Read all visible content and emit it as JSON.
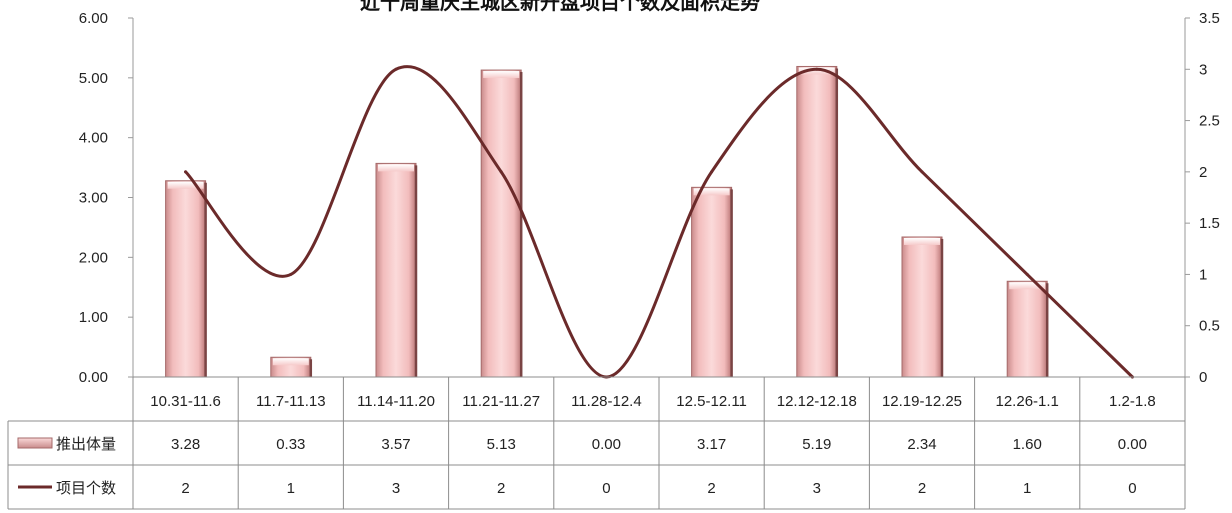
{
  "chart_data": {
    "type": "bar",
    "title": "近十周重庆主城区新开盘项目个数及面积走势",
    "categories": [
      "10.31-11.6",
      "11.7-11.13",
      "11.14-11.20",
      "11.21-11.27",
      "11.28-12.4",
      "12.5-12.11",
      "12.12-12.18",
      "12.19-12.25",
      "12.26-1.1",
      "1.2-1.8"
    ],
    "series": [
      {
        "name": "推出体量",
        "type": "bar",
        "axis": "left",
        "values": [
          3.28,
          0.33,
          3.57,
          5.13,
          0.0,
          3.17,
          5.19,
          2.34,
          1.6,
          0.0
        ],
        "labels": [
          "3.28",
          "0.33",
          "3.57",
          "5.13",
          "0.00",
          "3.17",
          "5.19",
          "2.34",
          "1.60",
          "0.00"
        ],
        "color": "#f4c0c0"
      },
      {
        "name": "项目个数",
        "type": "line",
        "axis": "right",
        "smooth": true,
        "values": [
          2,
          1,
          3,
          2,
          0,
          2,
          3,
          2,
          1,
          0
        ],
        "labels": [
          "2",
          "1",
          "3",
          "2",
          "0",
          "2",
          "3",
          "2",
          "1",
          "0"
        ],
        "color": "#6b2a2a"
      }
    ],
    "y_left": {
      "ylim": [
        0,
        6
      ],
      "ticks": [
        "0.00",
        "1.00",
        "2.00",
        "3.00",
        "4.00",
        "5.00",
        "6.00"
      ]
    },
    "y_right": {
      "ylim": [
        0,
        3.5
      ],
      "ticks": [
        "0",
        "0.5",
        "1",
        "1.5",
        "2",
        "2.5",
        "3",
        "3.5"
      ]
    },
    "data_table": true,
    "grid": false
  }
}
